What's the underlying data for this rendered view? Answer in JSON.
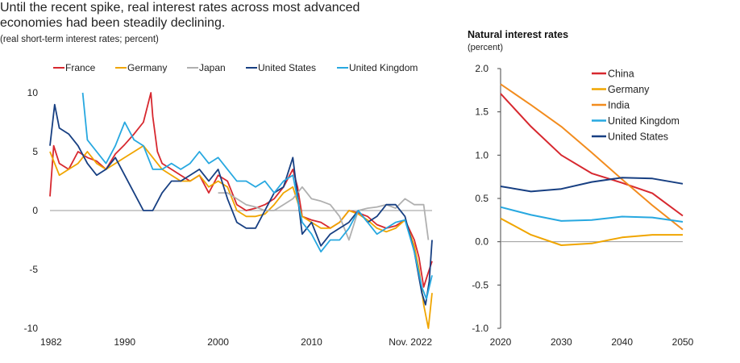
{
  "headline": {
    "line1": "Until the recent spike, real interest rates across most advanced",
    "line2": "economies had been steadily declining.",
    "subtitle": "(real short-term interest rates; percent)"
  },
  "chart_data": [
    {
      "type": "line",
      "title": "",
      "units": "real short-term interest rates; percent",
      "legend_position": "top",
      "x_tick_labels": [
        "1982",
        "1990",
        "2000",
        "2010",
        "Nov. 2022"
      ],
      "xlim": [
        1982,
        2022.9
      ],
      "ylim": [
        -10,
        10
      ],
      "y_ticks": [
        10,
        5,
        0,
        -5,
        -10
      ],
      "y_tick_labels": [
        "10",
        "5",
        "0",
        "-5",
        "-10"
      ],
      "zero_line": true,
      "series": [
        {
          "name": "France",
          "color": "#d7282f",
          "x": [
            1982,
            1982.4,
            1983,
            1984,
            1985,
            1986,
            1987,
            1988,
            1989,
            1990,
            1991,
            1992,
            1992.8,
            1993,
            1993.5,
            1994,
            1995,
            1996,
            1997,
            1998,
            1999,
            2000,
            2001,
            2002,
            2003,
            2004,
            2005,
            2006,
            2007,
            2008,
            2008.5,
            2009,
            2010,
            2011,
            2012,
            2013,
            2014,
            2015,
            2016,
            2017,
            2018,
            2019,
            2020,
            2021,
            2021.5,
            2022,
            2022.4,
            2022.9
          ],
          "y": [
            1.2,
            5.5,
            4.0,
            3.5,
            5.0,
            4.5,
            4.2,
            3.5,
            4.8,
            5.6,
            6.5,
            7.5,
            10.0,
            8.0,
            5.0,
            4.0,
            3.5,
            3.0,
            2.5,
            3.0,
            1.5,
            3.0,
            2.5,
            0.5,
            0.0,
            0.2,
            0.5,
            1.0,
            2.0,
            3.5,
            2.0,
            -0.5,
            -0.8,
            -1.0,
            -1.5,
            -1.0,
            0.0,
            -0.2,
            -0.5,
            -1.2,
            -1.5,
            -1.3,
            -0.8,
            -2.5,
            -4.0,
            -6.5,
            -5.5,
            -4.3
          ]
        },
        {
          "name": "Germany",
          "color": "#f0a500",
          "x": [
            1982,
            1983,
            1984,
            1985,
            1986,
            1987,
            1988,
            1989,
            1990,
            1991,
            1992,
            1993,
            1994,
            1995,
            1996,
            1997,
            1998,
            1999,
            2000,
            2001,
            2002,
            2003,
            2004,
            2005,
            2006,
            2007,
            2008,
            2009,
            2010,
            2011,
            2012,
            2013,
            2014,
            2015,
            2016,
            2017,
            2018,
            2019,
            2020,
            2021,
            2021.5,
            2022,
            2022.5,
            2022.9
          ],
          "y": [
            5.0,
            3.0,
            3.5,
            4.0,
            5.0,
            4.0,
            3.5,
            4.0,
            4.5,
            5.0,
            5.5,
            4.5,
            3.5,
            3.0,
            2.5,
            2.5,
            3.0,
            2.0,
            2.5,
            2.0,
            0.0,
            -0.5,
            -0.5,
            -0.3,
            0.5,
            1.5,
            2.0,
            -0.5,
            -1.0,
            -1.5,
            -1.5,
            -1.0,
            0.0,
            -0.3,
            -0.8,
            -1.5,
            -1.8,
            -1.5,
            -0.8,
            -3.0,
            -5.0,
            -8.0,
            -10.0,
            -7.0
          ]
        },
        {
          "name": "Japan",
          "color": "#b0b0b0",
          "x": [
            2000,
            2001,
            2002,
            2003,
            2004,
            2005,
            2006,
            2007,
            2008,
            2009,
            2010,
            2011,
            2012,
            2013,
            2014,
            2015,
            2016,
            2017,
            2018,
            2019,
            2020,
            2021,
            2022,
            2022.5
          ],
          "y": [
            1.5,
            1.5,
            1.0,
            0.5,
            0.3,
            0.0,
            0.0,
            0.5,
            1.0,
            2.0,
            1.0,
            0.8,
            0.5,
            -0.5,
            -2.5,
            0.0,
            0.2,
            0.3,
            0.5,
            0.2,
            1.0,
            0.5,
            0.5,
            -2.5
          ]
        },
        {
          "name": "United States",
          "color": "#173f82",
          "x": [
            1982,
            1982.5,
            1983,
            1984,
            1985,
            1986,
            1987,
            1988,
            1989,
            1990,
            1991,
            1992,
            1993,
            1994,
            1995,
            1996,
            1997,
            1998,
            1999,
            2000,
            2001,
            2002,
            2003,
            2004,
            2005,
            2006,
            2007,
            2008,
            2009,
            2010,
            2011,
            2012,
            2013,
            2014,
            2015,
            2016,
            2017,
            2018,
            2019,
            2020,
            2021,
            2021.8,
            2022.2,
            2022.6,
            2022.9
          ],
          "y": [
            5.5,
            9.0,
            7.0,
            6.5,
            5.5,
            4.0,
            3.0,
            3.5,
            4.5,
            3.0,
            1.5,
            0.0,
            0.0,
            1.5,
            2.5,
            2.5,
            3.0,
            3.5,
            2.5,
            3.5,
            1.0,
            -1.0,
            -1.5,
            -1.5,
            0.0,
            1.5,
            2.0,
            4.5,
            -2.0,
            -1.0,
            -3.0,
            -2.0,
            -1.5,
            -1.0,
            0.0,
            -1.0,
            -0.5,
            0.5,
            0.5,
            -0.5,
            -3.5,
            -7.0,
            -8.0,
            -6.0,
            -2.5
          ]
        },
        {
          "name": "United Kingdom",
          "color": "#27a8e0",
          "x": [
            1985.5,
            1986,
            1987,
            1988,
            1989,
            1990,
            1991,
            1992,
            1993,
            1994,
            1995,
            1996,
            1997,
            1998,
            1999,
            2000,
            2001,
            2002,
            2003,
            2004,
            2005,
            2006,
            2007,
            2008,
            2009,
            2010,
            2011,
            2012,
            2013,
            2014,
            2015,
            2016,
            2017,
            2018,
            2019,
            2020,
            2021,
            2021.8,
            2022.3,
            2022.9
          ],
          "y": [
            10.0,
            6.0,
            5.0,
            4.0,
            5.5,
            7.5,
            6.0,
            5.5,
            3.5,
            3.5,
            4.0,
            3.5,
            4.0,
            5.0,
            4.0,
            4.5,
            3.5,
            2.5,
            2.5,
            2.0,
            2.5,
            1.5,
            2.5,
            3.0,
            -1.0,
            -2.0,
            -3.5,
            -2.5,
            -2.5,
            -1.5,
            0.0,
            -1.0,
            -2.0,
            -1.5,
            -1.0,
            -0.8,
            -3.5,
            -6.5,
            -7.5,
            -5.5
          ]
        }
      ]
    },
    {
      "type": "line",
      "title": "Natural interest rates",
      "subtitle": "(percent)",
      "legend_position": "top-right",
      "x": [
        2020,
        2025,
        2030,
        2035,
        2040,
        2045,
        2050
      ],
      "x_ticks": [
        2020,
        2030,
        2040,
        2050
      ],
      "x_tick_labels": [
        "2020",
        "2030",
        "2040",
        "2050"
      ],
      "xlim": [
        2020,
        2050
      ],
      "ylim": [
        -1.0,
        2.0
      ],
      "y_ticks": [
        2.0,
        1.5,
        1.0,
        0.5,
        0.0,
        -0.5,
        -1.0
      ],
      "y_tick_labels": [
        "2.0",
        "1.5",
        "1.0",
        "0.5",
        "0.0",
        "-0.5",
        "-1.0"
      ],
      "zero_line": true,
      "series": [
        {
          "name": "China",
          "color": "#d7282f",
          "values": [
            1.71,
            1.33,
            1.0,
            0.79,
            0.68,
            0.56,
            0.3
          ]
        },
        {
          "name": "Germany",
          "color": "#f0a500",
          "values": [
            0.27,
            0.08,
            -0.04,
            -0.02,
            0.05,
            0.08,
            0.08
          ]
        },
        {
          "name": "India",
          "color": "#f28c1e",
          "values": [
            1.82,
            1.58,
            1.33,
            1.03,
            0.72,
            0.42,
            0.14
          ]
        },
        {
          "name": "United Kingdom",
          "color": "#27a8e0",
          "values": [
            0.4,
            0.31,
            0.24,
            0.25,
            0.29,
            0.28,
            0.23
          ]
        },
        {
          "name": "United States",
          "color": "#173f82",
          "values": [
            0.64,
            0.58,
            0.61,
            0.69,
            0.74,
            0.73,
            0.67
          ]
        }
      ]
    }
  ]
}
